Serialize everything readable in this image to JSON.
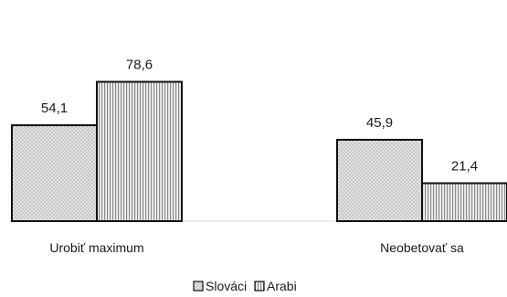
{
  "chart_data": {
    "type": "bar",
    "categories": [
      "Urobiť maximum",
      "Neobetovať sa"
    ],
    "series": [
      {
        "name": "Slováci",
        "values": [
          54.1,
          45.9
        ],
        "value_labels": [
          "54,1",
          "45,9"
        ]
      },
      {
        "name": "Arabi",
        "values": [
          78.6,
          21.4
        ],
        "value_labels": [
          "78,6",
          "21,4"
        ]
      }
    ],
    "ylim": [
      0,
      100
    ],
    "grid": false,
    "legend_position": "bottom-center",
    "colors": {
      "bar_stroke": "#111111",
      "baseline": "#d9d9d9",
      "pattern_fill": "#e6e6e6"
    }
  }
}
